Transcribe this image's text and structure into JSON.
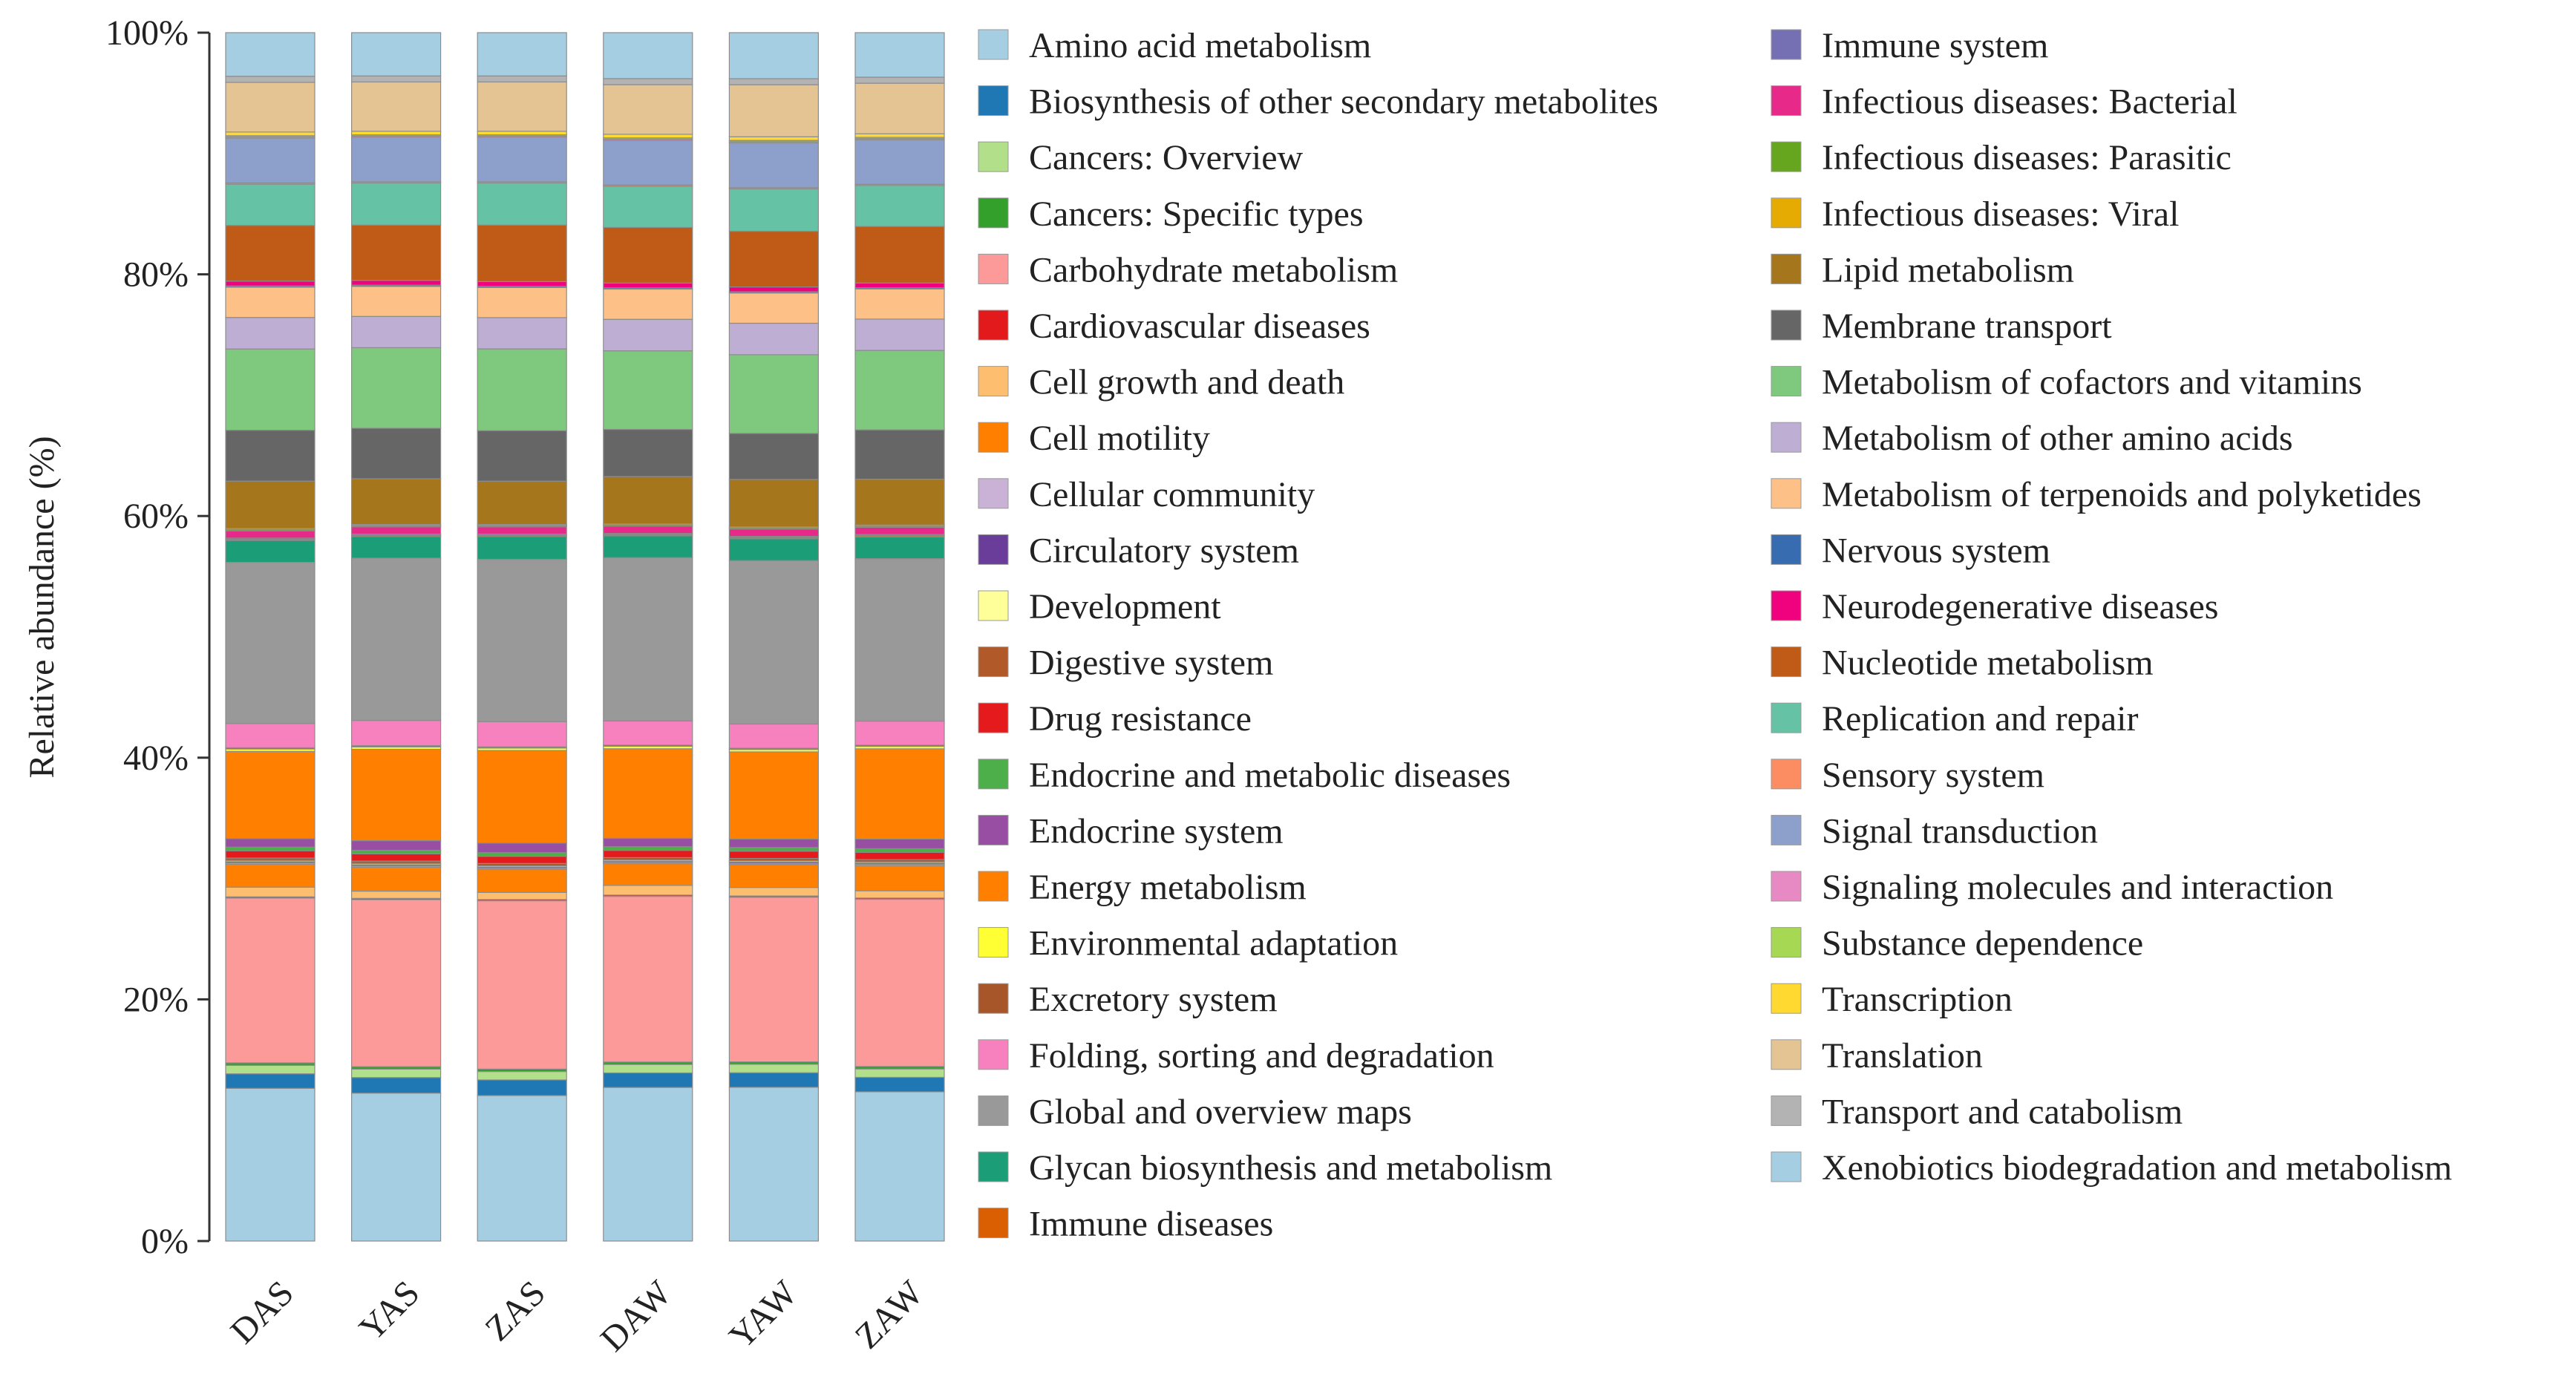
{
  "chart_data": {
    "type": "bar",
    "stacked": true,
    "normalized": true,
    "title": "",
    "xlabel": "",
    "ylabel": "Relative abundance (%)",
    "ylim": [
      0,
      100
    ],
    "y_ticks": [
      "0%",
      "20%",
      "40%",
      "60%",
      "80%",
      "100%"
    ],
    "grid": false,
    "legend_position": "right, two columns",
    "categories": [
      "DAS",
      "YAS",
      "ZAS",
      "DAW",
      "YAW",
      "ZAW"
    ],
    "series": [
      {
        "name": "Xenobiotics biodegradation and metabolism",
        "color": "#a6cee3",
        "values": [
          12.6,
          12.3,
          12.1,
          12.7,
          12.7,
          12.4
        ]
      },
      {
        "name": "Biosynthesis of other secondary metabolites",
        "color": "#1f78b4",
        "values": [
          1.2,
          1.3,
          1.3,
          1.2,
          1.2,
          1.2
        ]
      },
      {
        "name": "Cancers: Overview",
        "color": "#b2df8a",
        "values": [
          0.7,
          0.7,
          0.7,
          0.7,
          0.7,
          0.7
        ]
      },
      {
        "name": "Cancers: Specific types",
        "color": "#33a02c",
        "values": [
          0.2,
          0.2,
          0.2,
          0.2,
          0.2,
          0.2
        ]
      },
      {
        "name": "Carbohydrate metabolism",
        "color": "#fb9a99",
        "values": [
          13.6,
          13.9,
          14.0,
          13.7,
          13.6,
          13.9
        ]
      },
      {
        "name": "Cardiovascular diseases",
        "color": "#e31a1c",
        "values": [
          0.1,
          0.1,
          0.1,
          0.1,
          0.1,
          0.1
        ]
      },
      {
        "name": "Cell growth and death",
        "color": "#fdbf6f",
        "values": [
          0.8,
          0.6,
          0.6,
          0.8,
          0.7,
          0.6
        ]
      },
      {
        "name": "Cell motility",
        "color": "#ff7f00",
        "values": [
          1.9,
          2.0,
          1.9,
          1.8,
          1.9,
          2.1
        ]
      },
      {
        "name": "Cellular community",
        "color": "#cab2d6",
        "values": [
          0.1,
          0.1,
          0.1,
          0.1,
          0.1,
          0.1
        ]
      },
      {
        "name": "Circulatory system",
        "color": "#6a3d9a",
        "values": [
          0.1,
          0.1,
          0.1,
          0.1,
          0.1,
          0.1
        ]
      },
      {
        "name": "Development",
        "color": "#ffff99",
        "values": [
          0.1,
          0.1,
          0.1,
          0.1,
          0.1,
          0.1
        ]
      },
      {
        "name": "Digestive system",
        "color": "#b15928",
        "values": [
          0.2,
          0.2,
          0.2,
          0.2,
          0.2,
          0.2
        ]
      },
      {
        "name": "Drug resistance",
        "color": "#e41a1c",
        "values": [
          0.6,
          0.6,
          0.6,
          0.6,
          0.6,
          0.6
        ]
      },
      {
        "name": "Endocrine and metabolic diseases",
        "color": "#4daf4a",
        "values": [
          0.3,
          0.3,
          0.3,
          0.3,
          0.3,
          0.3
        ]
      },
      {
        "name": "Endocrine system",
        "color": "#984ea3",
        "values": [
          0.7,
          0.8,
          0.8,
          0.7,
          0.7,
          0.8
        ]
      },
      {
        "name": "Energy metabolism",
        "color": "#ff7f00",
        "values": [
          7.2,
          7.6,
          7.7,
          7.4,
          7.2,
          7.5
        ]
      },
      {
        "name": "Environmental adaptation",
        "color": "#ffff33",
        "values": [
          0.2,
          0.2,
          0.2,
          0.2,
          0.2,
          0.2
        ]
      },
      {
        "name": "Excretory system",
        "color": "#a65628",
        "values": [
          0.1,
          0.1,
          0.1,
          0.1,
          0.1,
          0.1
        ]
      },
      {
        "name": "Folding, sorting and degradation",
        "color": "#f781bf",
        "values": [
          2.0,
          2.1,
          2.1,
          2.0,
          2.0,
          2.0
        ]
      },
      {
        "name": "Global and overview maps",
        "color": "#999999",
        "values": [
          13.3,
          13.5,
          13.5,
          13.5,
          13.5,
          13.5
        ]
      },
      {
        "name": "Glycan biosynthesis and metabolism",
        "color": "#1b9e77",
        "values": [
          1.8,
          1.8,
          1.9,
          1.8,
          1.8,
          1.8
        ]
      },
      {
        "name": "Immune diseases",
        "color": "#d95f02",
        "values": [
          0.1,
          0.1,
          0.1,
          0.1,
          0.1,
          0.1
        ]
      },
      {
        "name": "Immune system",
        "color": "#7570b3",
        "values": [
          0.1,
          0.1,
          0.1,
          0.1,
          0.1,
          0.1
        ]
      },
      {
        "name": "Infectious diseases: Bacterial",
        "color": "#e7298a",
        "values": [
          0.6,
          0.6,
          0.6,
          0.6,
          0.6,
          0.6
        ]
      },
      {
        "name": "Infectious diseases: Parasitic",
        "color": "#66a61e",
        "values": [
          0.1,
          0.1,
          0.1,
          0.1,
          0.1,
          0.1
        ]
      },
      {
        "name": "Infectious diseases: Viral",
        "color": "#e6ab02",
        "values": [
          0.1,
          0.1,
          0.1,
          0.1,
          0.1,
          0.1
        ]
      },
      {
        "name": "Lipid metabolism",
        "color": "#a6761d",
        "values": [
          3.9,
          3.8,
          3.6,
          3.9,
          3.9,
          3.8
        ]
      },
      {
        "name": "Membrane transport",
        "color": "#666666",
        "values": [
          4.2,
          4.2,
          4.2,
          3.9,
          3.8,
          4.1
        ]
      },
      {
        "name": "Metabolism of cofactors and vitamins",
        "color": "#7fc97f",
        "values": [
          6.7,
          6.7,
          6.8,
          6.5,
          6.5,
          6.6
        ]
      },
      {
        "name": "Metabolism of other amino acids",
        "color": "#beaed4",
        "values": [
          2.6,
          2.6,
          2.6,
          2.6,
          2.6,
          2.6
        ]
      },
      {
        "name": "Metabolism of terpenoids and polyketides",
        "color": "#fdc086",
        "values": [
          2.5,
          2.5,
          2.5,
          2.5,
          2.5,
          2.5
        ]
      },
      {
        "name": "Nervous system",
        "color": "#386cb0",
        "values": [
          0.1,
          0.1,
          0.1,
          0.1,
          0.1,
          0.1
        ]
      },
      {
        "name": "Neurodegenerative diseases",
        "color": "#f0027f",
        "values": [
          0.4,
          0.4,
          0.4,
          0.4,
          0.4,
          0.4
        ]
      },
      {
        "name": "Nucleotide metabolism",
        "color": "#bf5b17",
        "values": [
          4.6,
          4.6,
          4.7,
          4.6,
          4.6,
          4.7
        ]
      },
      {
        "name": "Replication and repair",
        "color": "#66c2a5",
        "values": [
          3.4,
          3.5,
          3.5,
          3.4,
          3.5,
          3.4
        ]
      },
      {
        "name": "Sensory system",
        "color": "#fc8d62",
        "values": [
          0.1,
          0.1,
          0.1,
          0.1,
          0.1,
          0.1
        ]
      },
      {
        "name": "Signal transduction",
        "color": "#8da0cb",
        "values": [
          3.7,
          3.7,
          3.7,
          3.7,
          3.7,
          3.7
        ]
      },
      {
        "name": "Signaling molecules and interaction",
        "color": "#e78ac3",
        "values": [
          0.1,
          0.1,
          0.1,
          0.1,
          0.1,
          0.1
        ]
      },
      {
        "name": "Substance dependence",
        "color": "#a6d854",
        "values": [
          0.1,
          0.1,
          0.1,
          0.1,
          0.1,
          0.1
        ]
      },
      {
        "name": "Transcription",
        "color": "#ffd92f",
        "values": [
          0.3,
          0.3,
          0.3,
          0.3,
          0.3,
          0.3
        ]
      },
      {
        "name": "Translation",
        "color": "#e5c494",
        "values": [
          4.1,
          4.1,
          4.1,
          4.1,
          4.3,
          4.2
        ]
      },
      {
        "name": "Transport and catabolism",
        "color": "#b3b3b3",
        "values": [
          0.5,
          0.5,
          0.5,
          0.5,
          0.5,
          0.5
        ]
      },
      {
        "name": "Amino acid metabolism",
        "color": "#a6cee3",
        "values": [
          3.6,
          3.6,
          3.6,
          3.8,
          3.8,
          3.7
        ]
      }
    ],
    "legend": [
      {
        "name": "Amino acid metabolism",
        "color": "#a6cee3"
      },
      {
        "name": "Biosynthesis of other secondary metabolites",
        "color": "#1f78b4"
      },
      {
        "name": "Cancers: Overview",
        "color": "#b2df8a"
      },
      {
        "name": "Cancers: Specific types",
        "color": "#33a02c"
      },
      {
        "name": "Carbohydrate metabolism",
        "color": "#fb9a99"
      },
      {
        "name": "Cardiovascular diseases",
        "color": "#e31a1c"
      },
      {
        "name": "Cell growth and death",
        "color": "#fdbf6f"
      },
      {
        "name": "Cell motility",
        "color": "#ff7f00"
      },
      {
        "name": "Cellular community",
        "color": "#cab2d6"
      },
      {
        "name": "Circulatory system",
        "color": "#6a3d9a"
      },
      {
        "name": "Development",
        "color": "#ffff99"
      },
      {
        "name": "Digestive system",
        "color": "#b15928"
      },
      {
        "name": "Drug resistance",
        "color": "#e41a1c"
      },
      {
        "name": "Endocrine and metabolic diseases",
        "color": "#4daf4a"
      },
      {
        "name": "Endocrine system",
        "color": "#984ea3"
      },
      {
        "name": "Energy metabolism",
        "color": "#ff7f00"
      },
      {
        "name": "Environmental adaptation",
        "color": "#ffff33"
      },
      {
        "name": "Excretory system",
        "color": "#a65628"
      },
      {
        "name": "Folding, sorting and degradation",
        "color": "#f781bf"
      },
      {
        "name": "Global and overview maps",
        "color": "#999999"
      },
      {
        "name": "Glycan biosynthesis and metabolism",
        "color": "#1b9e77"
      },
      {
        "name": "Immune diseases",
        "color": "#d95f02"
      },
      {
        "name": "Immune system",
        "color": "#7570b3"
      },
      {
        "name": "Infectious diseases: Bacterial",
        "color": "#e7298a"
      },
      {
        "name": "Infectious diseases: Parasitic",
        "color": "#66a61e"
      },
      {
        "name": "Infectious diseases: Viral",
        "color": "#e6ab02"
      },
      {
        "name": "Lipid metabolism",
        "color": "#a6761d"
      },
      {
        "name": "Membrane transport",
        "color": "#666666"
      },
      {
        "name": "Metabolism of cofactors and vitamins",
        "color": "#7fc97f"
      },
      {
        "name": "Metabolism of other amino acids",
        "color": "#beaed4"
      },
      {
        "name": "Metabolism of terpenoids and polyketides",
        "color": "#fdc086"
      },
      {
        "name": "Nervous system",
        "color": "#386cb0"
      },
      {
        "name": "Neurodegenerative diseases",
        "color": "#f0027f"
      },
      {
        "name": "Nucleotide metabolism",
        "color": "#bf5b17"
      },
      {
        "name": "Replication and repair",
        "color": "#66c2a5"
      },
      {
        "name": "Sensory system",
        "color": "#fc8d62"
      },
      {
        "name": "Signal transduction",
        "color": "#8da0cb"
      },
      {
        "name": "Signaling molecules and interaction",
        "color": "#e78ac3"
      },
      {
        "name": "Substance dependence",
        "color": "#a6d854"
      },
      {
        "name": "Transcription",
        "color": "#ffd92f"
      },
      {
        "name": "Translation",
        "color": "#e5c494"
      },
      {
        "name": "Transport and catabolism",
        "color": "#b3b3b3"
      },
      {
        "name": "Xenobiotics biodegradation and metabolism",
        "color": "#a6cee3"
      }
    ]
  }
}
